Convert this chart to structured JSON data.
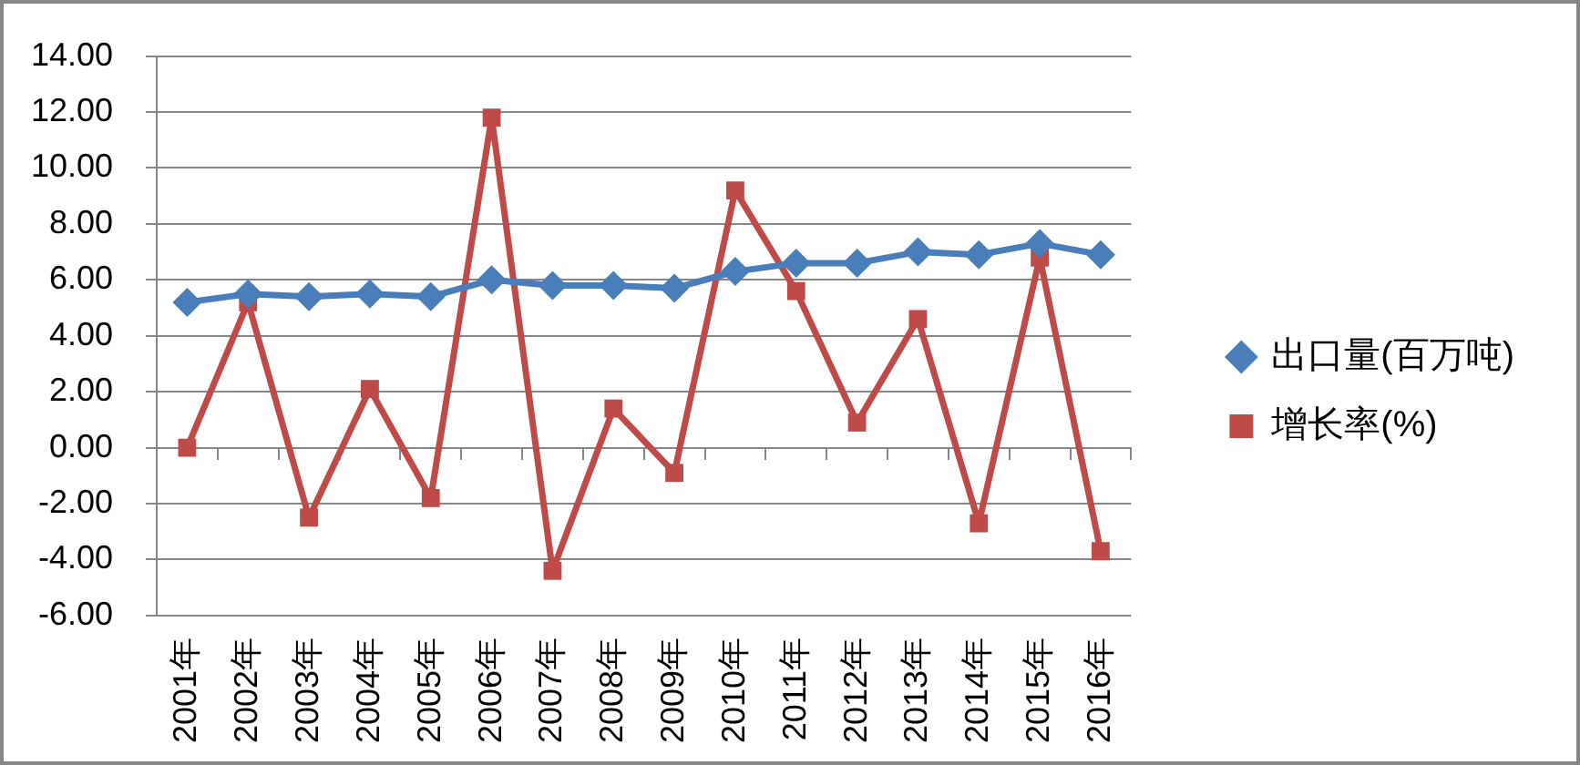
{
  "chart_data": {
    "type": "line",
    "categories": [
      "2001年",
      "2002年",
      "2003年",
      "2004年",
      "2005年",
      "2006年",
      "2007年",
      "2008年",
      "2009年",
      "2010年",
      "2011年",
      "2012年",
      "2013年",
      "2014年",
      "2015年",
      "2016年"
    ],
    "series": [
      {
        "name": "出口量(百万吨)",
        "color": "#4a7ebb",
        "marker": "diamond",
        "values": [
          5.2,
          5.5,
          5.4,
          5.5,
          5.4,
          6.0,
          5.8,
          5.8,
          5.7,
          6.3,
          6.6,
          6.6,
          7.0,
          6.9,
          7.3,
          6.9
        ]
      },
      {
        "name": "增长率(%)",
        "color": "#be4b48",
        "marker": "square",
        "values": [
          0,
          5.2,
          -2.5,
          2.1,
          -1.8,
          11.8,
          -4.4,
          1.4,
          -0.9,
          9.2,
          5.6,
          0.9,
          4.6,
          -2.7,
          6.8,
          -3.7
        ]
      }
    ],
    "ylim": [
      -6,
      14
    ],
    "yticks": [
      {
        "value": -6,
        "label": "-6.00"
      },
      {
        "value": -4,
        "label": "-4.00"
      },
      {
        "value": -2,
        "label": "-2.00"
      },
      {
        "value": 0,
        "label": "0.00"
      },
      {
        "value": 2,
        "label": "2.00"
      },
      {
        "value": 4,
        "label": "4.00"
      },
      {
        "value": 6,
        "label": "6.00"
      },
      {
        "value": 8,
        "label": "8.00"
      },
      {
        "value": 10,
        "label": "10.00"
      },
      {
        "value": 12,
        "label": "12.00"
      },
      {
        "value": 14,
        "label": "14.00"
      }
    ],
    "grid": "y",
    "legend": "right"
  }
}
